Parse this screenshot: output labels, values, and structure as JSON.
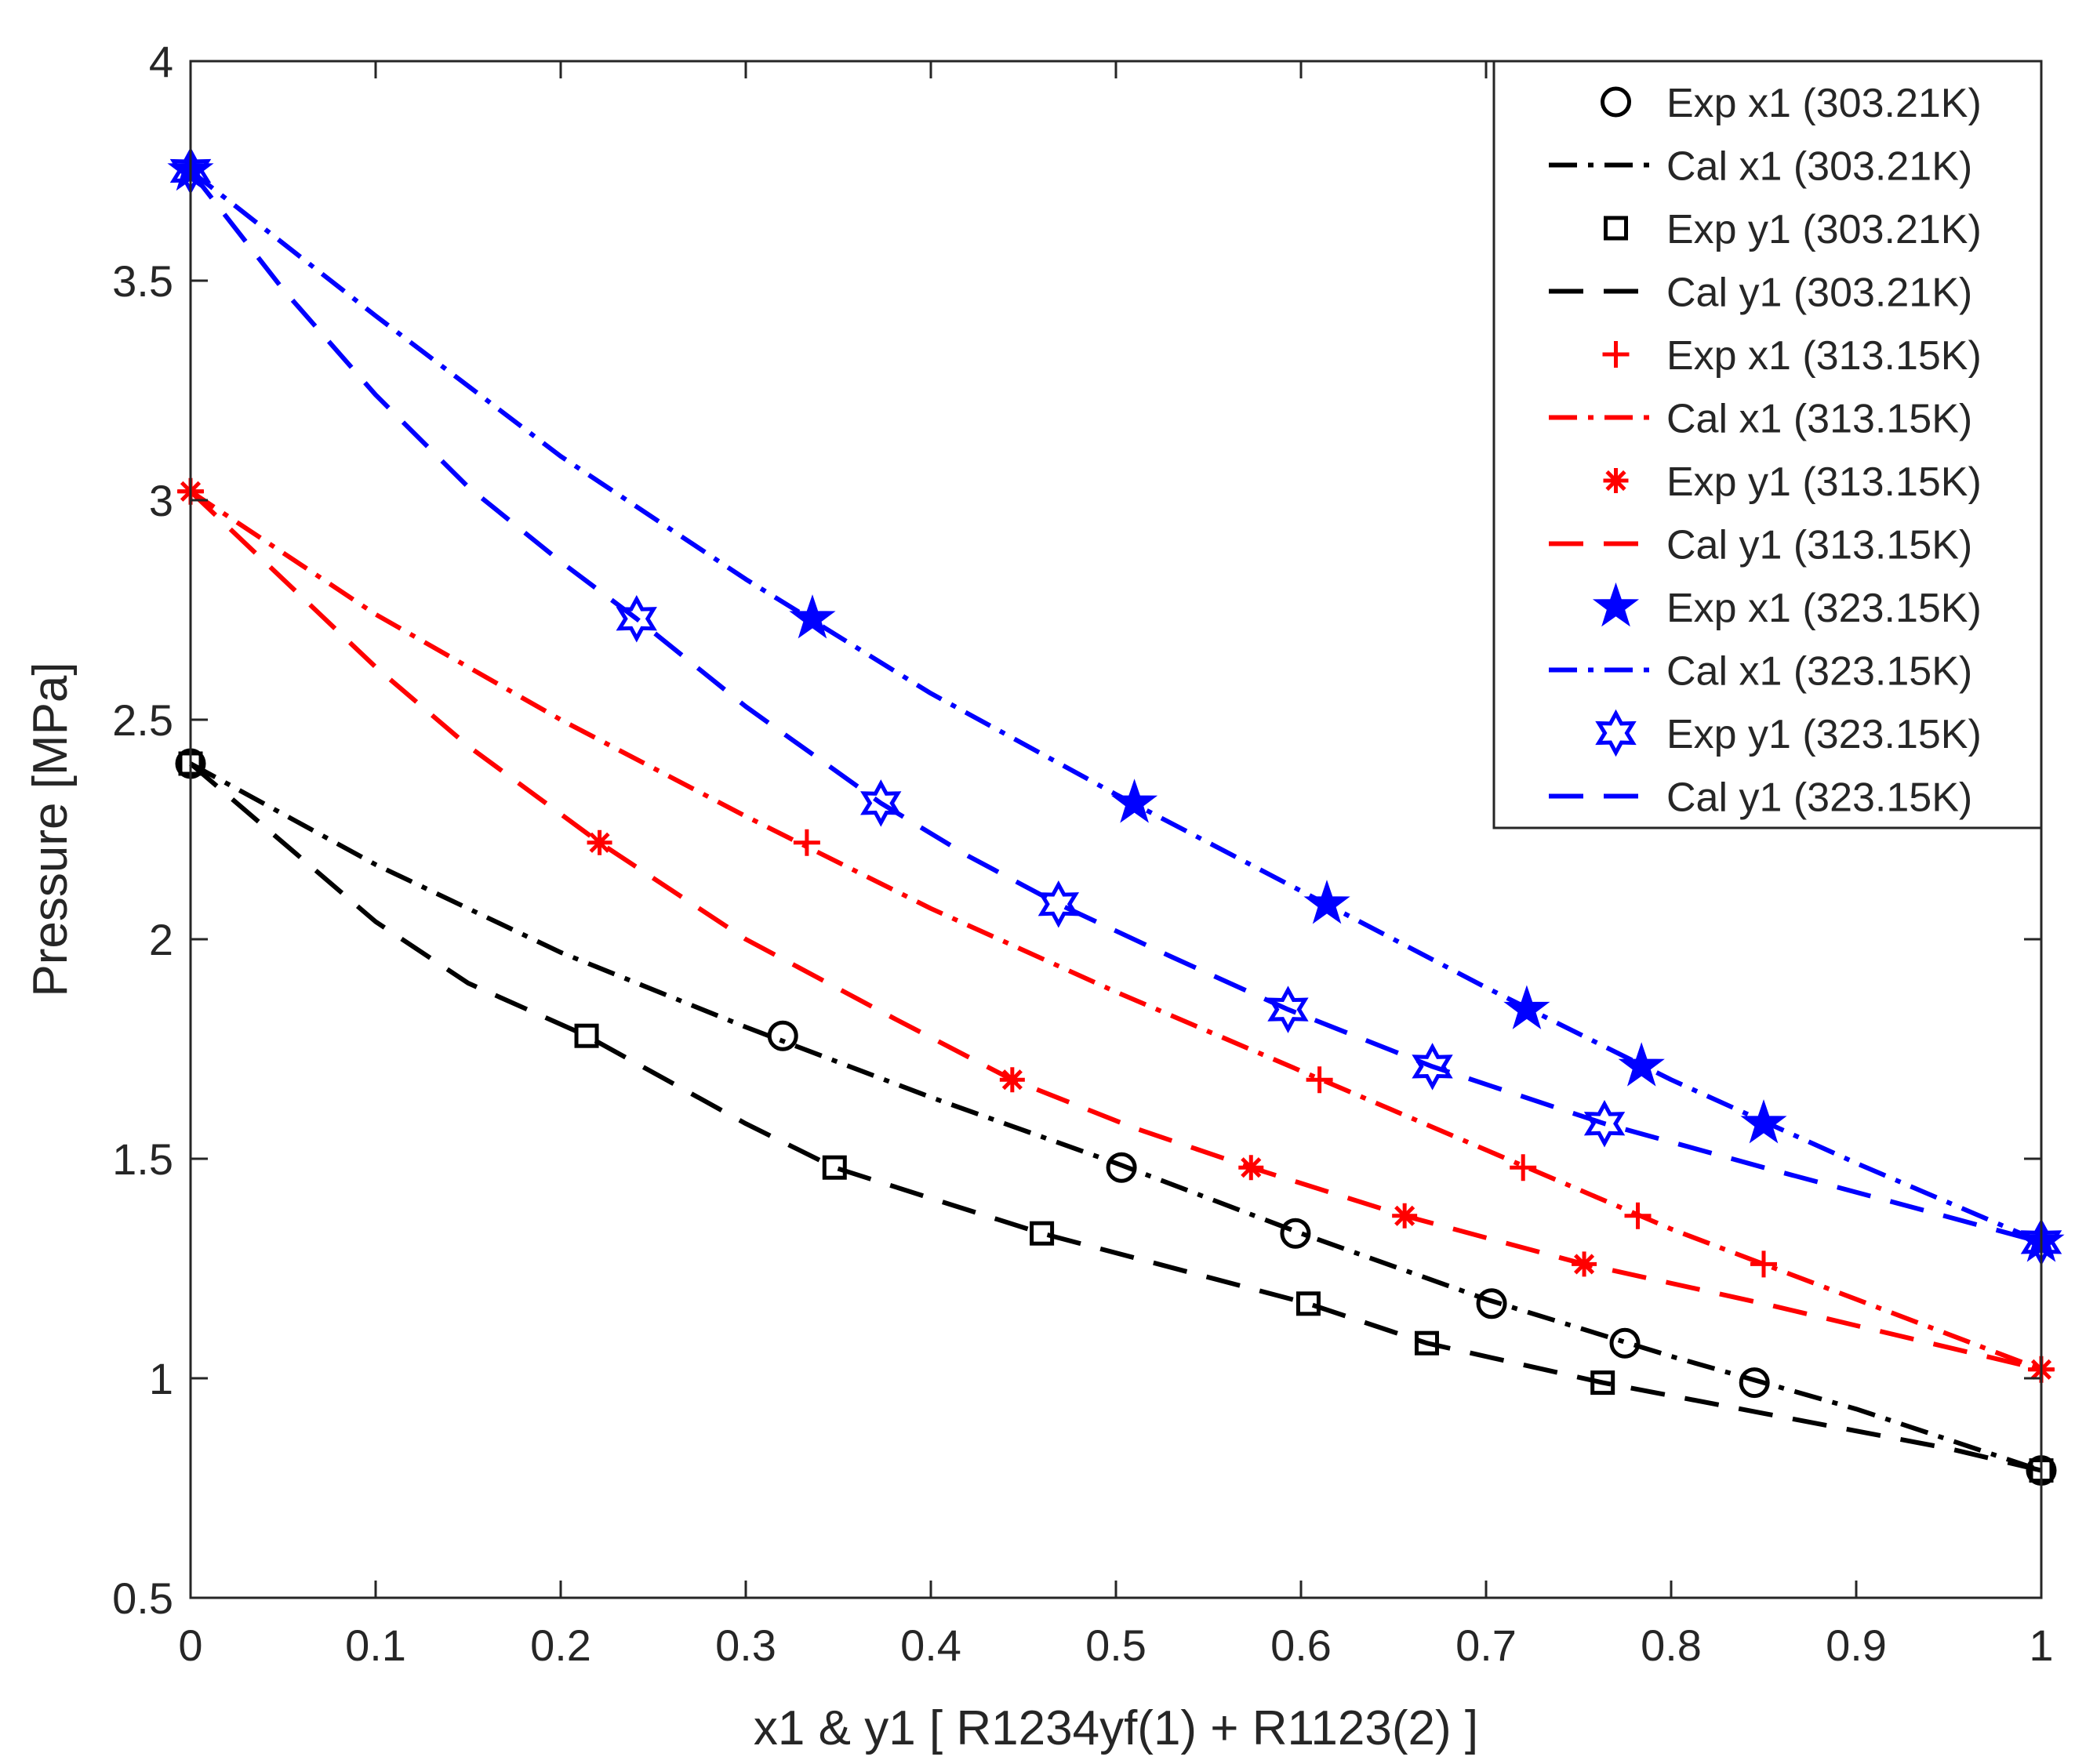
{
  "chart_data": {
    "type": "line",
    "xlabel": "x1 & y1 [ R1234yf(1) + R1123(2) ]",
    "ylabel": "Pressure [MPa]",
    "xlim": [
      0,
      1
    ],
    "ylim": [
      0.5,
      4
    ],
    "xticks": [
      0,
      0.1,
      0.2,
      0.3,
      0.4,
      0.5,
      0.6,
      0.7,
      0.8,
      0.9,
      1
    ],
    "yticks": [
      0.5,
      1,
      1.5,
      2,
      2.5,
      3,
      3.5,
      4
    ],
    "xtick_labels": [
      "0",
      "0.1",
      "0.2",
      "0.3",
      "0.4",
      "0.5",
      "0.6",
      "0.7",
      "0.8",
      "0.9",
      "1"
    ],
    "ytick_labels": [
      "0.5",
      "1",
      "1.5",
      "2",
      "2.5",
      "3",
      "3.5",
      "4"
    ],
    "grid": false,
    "legend_position": "top-right",
    "series": [
      {
        "name": "Exp x1 (303.21K)",
        "kind": "marker",
        "marker": "circle",
        "color": "#000000",
        "x": [
          0,
          0.32,
          0.503,
          0.597,
          0.703,
          0.775,
          0.845,
          1.0
        ],
        "y": [
          2.4,
          1.78,
          1.48,
          1.33,
          1.17,
          1.08,
          0.99,
          0.79
        ]
      },
      {
        "name": "Cal x1 (303.21K)",
        "kind": "line",
        "style": "dashdot",
        "color": "#000000",
        "x": [
          0,
          0.1,
          0.2,
          0.3,
          0.4,
          0.5,
          0.6,
          0.7,
          0.8,
          0.9,
          1.0
        ],
        "y": [
          2.4,
          2.17,
          1.97,
          1.8,
          1.64,
          1.49,
          1.33,
          1.18,
          1.05,
          0.93,
          0.79
        ]
      },
      {
        "name": "Exp y1 (303.21K)",
        "kind": "marker",
        "marker": "square",
        "color": "#000000",
        "x": [
          0,
          0.214,
          0.348,
          0.46,
          0.604,
          0.668,
          0.763,
          1.0
        ],
        "y": [
          2.4,
          1.78,
          1.48,
          1.33,
          1.17,
          1.08,
          0.99,
          0.79
        ]
      },
      {
        "name": "Cal y1 (303.21K)",
        "kind": "line",
        "style": "dashed",
        "color": "#000000",
        "x": [
          0,
          0.05,
          0.1,
          0.15,
          0.214,
          0.3,
          0.348,
          0.4,
          0.46,
          0.55,
          0.604,
          0.668,
          0.763,
          0.85,
          0.95,
          1.0
        ],
        "y": [
          2.4,
          2.22,
          2.04,
          1.9,
          1.78,
          1.58,
          1.48,
          1.41,
          1.33,
          1.23,
          1.17,
          1.08,
          0.99,
          0.92,
          0.84,
          0.79
        ]
      },
      {
        "name": "Exp x1 (313.15K)",
        "kind": "marker",
        "marker": "plus",
        "color": "#ff0000",
        "x": [
          0,
          0.333,
          0.61,
          0.72,
          0.782,
          0.85,
          1.0
        ],
        "y": [
          3.02,
          2.22,
          1.68,
          1.48,
          1.37,
          1.26,
          1.02
        ]
      },
      {
        "name": "Cal x1 (313.15K)",
        "kind": "line",
        "style": "dashdot",
        "color": "#ff0000",
        "x": [
          0,
          0.1,
          0.2,
          0.3,
          0.4,
          0.5,
          0.6,
          0.7,
          0.8,
          0.9,
          1.0
        ],
        "y": [
          3.02,
          2.74,
          2.5,
          2.28,
          2.07,
          1.88,
          1.7,
          1.52,
          1.34,
          1.18,
          1.02
        ]
      },
      {
        "name": "Exp y1 (313.15K)",
        "kind": "marker",
        "marker": "asterisk",
        "color": "#ff0000",
        "x": [
          0,
          0.221,
          0.444,
          0.573,
          0.656,
          0.753,
          1.0
        ],
        "y": [
          3.02,
          2.22,
          1.68,
          1.48,
          1.37,
          1.26,
          1.02
        ]
      },
      {
        "name": "Cal y1 (313.15K)",
        "kind": "line",
        "style": "dashed",
        "color": "#ff0000",
        "x": [
          0,
          0.05,
          0.1,
          0.15,
          0.221,
          0.3,
          0.38,
          0.444,
          0.51,
          0.573,
          0.656,
          0.753,
          0.85,
          0.93,
          1.0
        ],
        "y": [
          3.02,
          2.82,
          2.62,
          2.44,
          2.22,
          2.0,
          1.82,
          1.68,
          1.57,
          1.48,
          1.37,
          1.26,
          1.17,
          1.09,
          1.02
        ]
      },
      {
        "name": "Exp x1 (323.15K)",
        "kind": "marker",
        "marker": "star5",
        "color": "#0000ff",
        "x": [
          0,
          0.336,
          0.51,
          0.614,
          0.722,
          0.784,
          0.85,
          1.0
        ],
        "y": [
          3.75,
          2.73,
          2.31,
          2.08,
          1.84,
          1.71,
          1.58,
          1.31
        ]
      },
      {
        "name": "Cal x1 (323.15K)",
        "kind": "line",
        "style": "dashdot",
        "color": "#0000ff",
        "x": [
          0,
          0.1,
          0.2,
          0.3,
          0.4,
          0.5,
          0.6,
          0.7,
          0.8,
          0.9,
          1.0
        ],
        "y": [
          3.75,
          3.42,
          3.1,
          2.82,
          2.56,
          2.33,
          2.11,
          1.89,
          1.68,
          1.49,
          1.31
        ]
      },
      {
        "name": "Exp y1 (323.15K)",
        "kind": "marker",
        "marker": "hexagram",
        "color": "#0000ff",
        "x": [
          0,
          0.241,
          0.373,
          0.469,
          0.593,
          0.671,
          0.764,
          1.0
        ],
        "y": [
          3.75,
          2.73,
          2.31,
          2.08,
          1.84,
          1.71,
          1.58,
          1.31
        ]
      },
      {
        "name": "Cal y1 (323.15K)",
        "kind": "line",
        "style": "dashed",
        "color": "#0000ff",
        "x": [
          0,
          0.05,
          0.1,
          0.15,
          0.2,
          0.241,
          0.3,
          0.373,
          0.42,
          0.469,
          0.53,
          0.593,
          0.671,
          0.764,
          0.85,
          0.93,
          1.0
        ],
        "y": [
          3.75,
          3.48,
          3.24,
          3.03,
          2.86,
          2.73,
          2.53,
          2.31,
          2.19,
          2.08,
          1.96,
          1.84,
          1.71,
          1.58,
          1.48,
          1.39,
          1.31
        ]
      }
    ]
  }
}
